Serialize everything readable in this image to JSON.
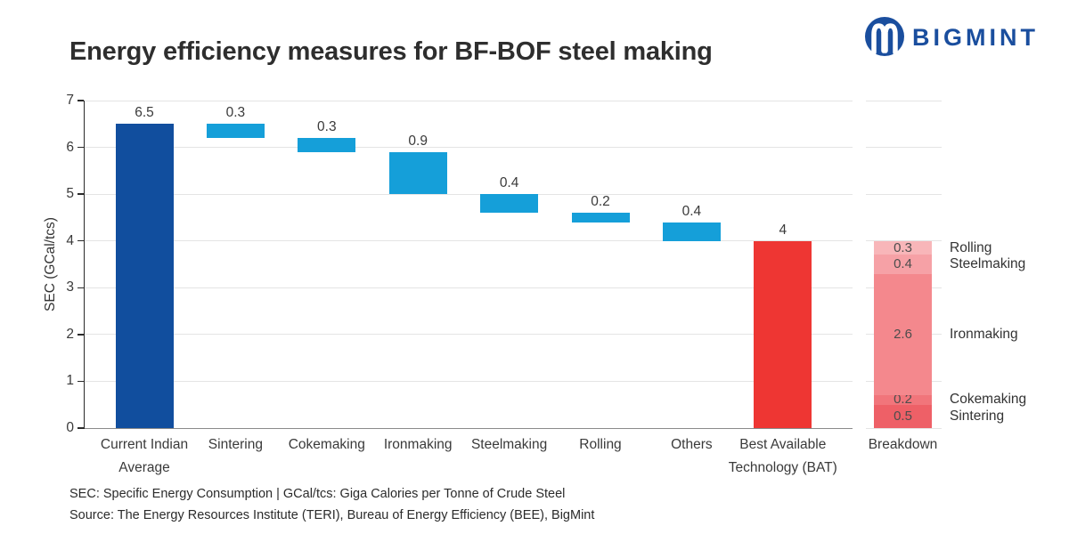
{
  "header": {
    "title": "Energy efficiency measures for BF-BOF steel making",
    "brand": "BIGMINT"
  },
  "chart_data": {
    "type": "waterfall",
    "title": "Energy efficiency measures for BF-BOF steel making",
    "xlabel": "",
    "ylabel": "SEC (GCal/tcs)",
    "ylim": [
      0,
      7
    ],
    "yticks": [
      0,
      1,
      2,
      3,
      4,
      5,
      6,
      7
    ],
    "grid": true,
    "legend": "none",
    "bars": [
      {
        "category": "Current Indian Average",
        "lines": [
          "Current Indian",
          "Average"
        ],
        "value": 6.5,
        "base": 0,
        "top": 6.5,
        "color_role": "total_start"
      },
      {
        "category": "Sintering",
        "lines": [
          "Sintering"
        ],
        "value": 0.3,
        "base": 6.2,
        "top": 6.5,
        "color_role": "decrement"
      },
      {
        "category": "Cokemaking",
        "lines": [
          "Cokemaking"
        ],
        "value": 0.3,
        "base": 5.9,
        "top": 6.2,
        "color_role": "decrement"
      },
      {
        "category": "Ironmaking",
        "lines": [
          "Ironmaking"
        ],
        "value": 0.9,
        "base": 5.0,
        "top": 5.9,
        "color_role": "decrement"
      },
      {
        "category": "Steelmaking",
        "lines": [
          "Steelmaking"
        ],
        "value": 0.4,
        "base": 4.6,
        "top": 5.0,
        "color_role": "decrement"
      },
      {
        "category": "Rolling",
        "lines": [
          "Rolling"
        ],
        "value": 0.2,
        "base": 4.4,
        "top": 4.6,
        "color_role": "decrement"
      },
      {
        "category": "Others",
        "lines": [
          "Others"
        ],
        "value": 0.4,
        "base": 4.0,
        "top": 4.4,
        "color_role": "decrement"
      },
      {
        "category": "Best Available Technology (BAT)",
        "lines": [
          "Best Available",
          "Technology (BAT)"
        ],
        "value": 4,
        "base": 0,
        "top": 4,
        "color_role": "total_end"
      }
    ],
    "breakdown": {
      "category": "Breakdown",
      "total": 4,
      "segments_bottom_to_top": [
        {
          "name": "Sintering",
          "value": 0.5,
          "color": "#EE6067"
        },
        {
          "name": "Cokemaking",
          "value": 0.2,
          "color": "#F1757B"
        },
        {
          "name": "Ironmaking",
          "value": 2.6,
          "color": "#F4888D"
        },
        {
          "name": "Steelmaking",
          "value": 0.4,
          "color": "#F6A1A6"
        },
        {
          "name": "Rolling",
          "value": 0.3,
          "color": "#F8B6B9"
        }
      ]
    },
    "colors": {
      "total_start": "#114E9E",
      "decrement": "#159FD9",
      "total_end": "#EE3633",
      "grid": "#E4E4E4",
      "axis": "#2A2A2A",
      "brand_blue": "#1A4E9E"
    }
  },
  "footnotes": [
    "SEC: Specific Energy Consumption | GCal/tcs: Giga Calories per Tonne of Crude Steel",
    "Source: The Energy Resources Institute (TERI), Bureau of Energy Efficiency (BEE), BigMint"
  ]
}
